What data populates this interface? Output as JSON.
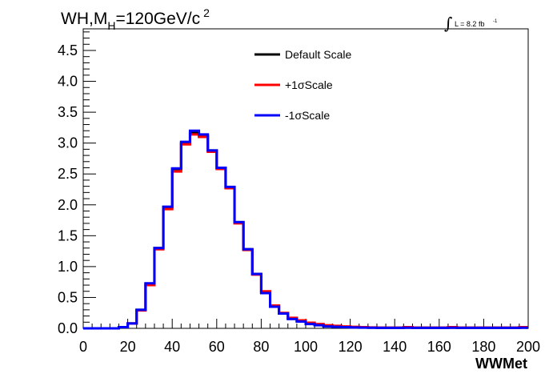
{
  "chart_data": {
    "type": "line",
    "title_parts": {
      "main1": "WH,M",
      "sub": "H",
      "main2": "=120GeV/c",
      "sup": "2"
    },
    "lumi_parts": {
      "integral": "∫",
      "text": "L = 8.2 fb",
      "sup": "-1"
    },
    "xlabel": "WWMet",
    "xlim": [
      0,
      200
    ],
    "ylim": [
      0,
      4.85
    ],
    "x_ticks": [
      0,
      20,
      40,
      60,
      80,
      100,
      120,
      140,
      160,
      180,
      200
    ],
    "x_tick_labels": [
      "0",
      "20",
      "40",
      "60",
      "80",
      "100",
      "120",
      "140",
      "160",
      "180",
      "200"
    ],
    "y_ticks": [
      0,
      0.5,
      1,
      1.5,
      2,
      2.5,
      3,
      3.5,
      4,
      4.5
    ],
    "y_tick_labels": [
      "0.0",
      "0.5",
      "1.0",
      "1.5",
      "2.0",
      "2.5",
      "3.0",
      "3.5",
      "4.0",
      "4.5"
    ],
    "bin_edges": [
      0,
      4,
      8,
      12,
      16,
      20,
      24,
      28,
      32,
      36,
      40,
      44,
      48,
      52,
      56,
      60,
      64,
      68,
      72,
      76,
      80,
      84,
      88,
      92,
      96,
      100,
      104,
      108,
      112,
      116,
      120,
      124,
      128,
      132,
      136,
      140,
      144,
      148,
      152,
      156,
      160,
      164,
      168,
      172,
      176,
      180,
      184,
      188,
      192,
      196,
      200
    ],
    "series": [
      {
        "name": "Default Scale",
        "color": "#000000",
        "values": [
          0,
          0,
          0,
          0,
          0.02,
          0.08,
          0.3,
          0.72,
          1.3,
          1.96,
          2.58,
          3.0,
          3.17,
          3.12,
          2.88,
          2.6,
          2.28,
          1.72,
          1.28,
          0.88,
          0.58,
          0.36,
          0.24,
          0.16,
          0.12,
          0.08,
          0.06,
          0.04,
          0.03,
          0.025,
          0.02,
          0.015,
          0.012,
          0.01,
          0.01,
          0.01,
          0.012,
          0.01,
          0.01,
          0.01,
          0.01,
          0.012,
          0.01,
          0.01,
          0.01,
          0.01,
          0.01,
          0.01,
          0.01,
          0.012
        ]
      },
      {
        "name": "+1σScale",
        "color": "#ff0000",
        "values": [
          0,
          0,
          0,
          0,
          0.02,
          0.08,
          0.29,
          0.7,
          1.28,
          1.93,
          2.54,
          2.98,
          3.14,
          3.1,
          2.86,
          2.58,
          2.27,
          1.7,
          1.27,
          0.87,
          0.6,
          0.37,
          0.25,
          0.17,
          0.13,
          0.09,
          0.07,
          0.05,
          0.04,
          0.03,
          0.025,
          0.02,
          0.015,
          0.012,
          0.012,
          0.012,
          0.02,
          0.012,
          0.012,
          0.012,
          0.012,
          0.02,
          0.012,
          0.012,
          0.012,
          0.012,
          0.012,
          0.012,
          0.012,
          0.02
        ]
      },
      {
        "name": "-1σScale",
        "color": "#0000ff",
        "values": [
          0,
          0,
          0,
          0,
          0.02,
          0.08,
          0.3,
          0.73,
          1.3,
          1.97,
          2.59,
          3.02,
          3.2,
          3.14,
          2.88,
          2.6,
          2.29,
          1.72,
          1.28,
          0.88,
          0.57,
          0.35,
          0.24,
          0.15,
          0.11,
          0.07,
          0.05,
          0.03,
          0.025,
          0.02,
          0.015,
          0.012,
          0.01,
          0.008,
          0.008,
          0.008,
          0.01,
          0.008,
          0.008,
          0.008,
          0.008,
          0.01,
          0.008,
          0.008,
          0.008,
          0.008,
          0.008,
          0.008,
          0.008,
          0.01
        ]
      }
    ],
    "legend": {
      "placement": "top-center",
      "entries": [
        "Default Scale",
        "+1σScale",
        "-1σScale"
      ],
      "colors": [
        "#000000",
        "#ff0000",
        "#0000ff"
      ]
    },
    "grid": false
  }
}
